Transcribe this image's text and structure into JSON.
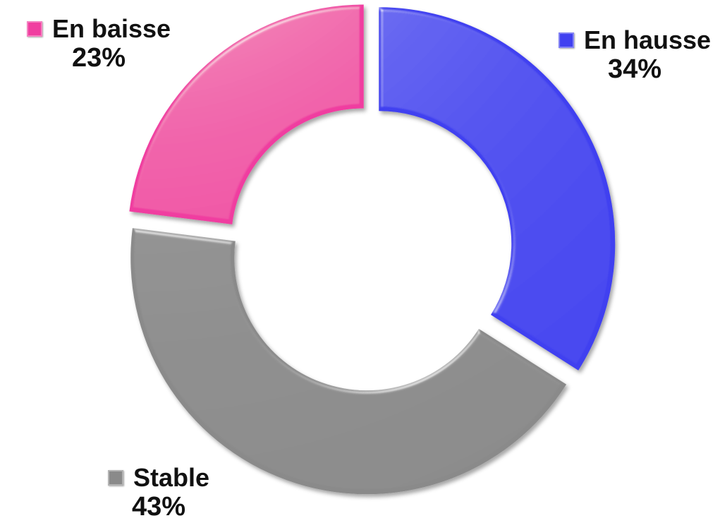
{
  "chart_data": {
    "type": "pie",
    "donut": true,
    "exploded": true,
    "start_angle_deg": 0,
    "direction": "clockwise",
    "legend": "data-labels",
    "slices": [
      {
        "name": "En hausse",
        "value": 34,
        "label": "34%",
        "color": "#4040f0"
      },
      {
        "name": "Stable",
        "value": 43,
        "label": "43%",
        "color": "#8a8a8a"
      },
      {
        "name": "En baisse",
        "value": 23,
        "label": "23%",
        "color": "#f03ea0"
      }
    ]
  }
}
